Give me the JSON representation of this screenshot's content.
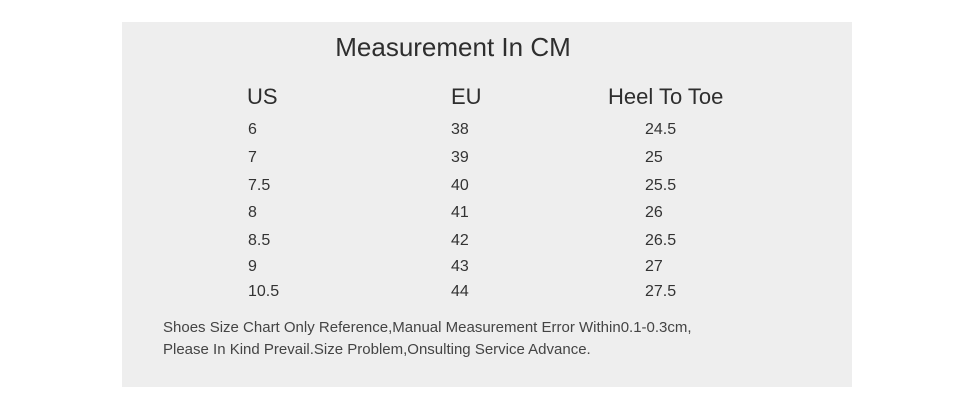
{
  "header": {
    "title": "Measurement In CM"
  },
  "table": {
    "columns": [
      "US",
      "EU",
      "Heel To Toe"
    ],
    "rows": [
      [
        "6",
        "38",
        "24.5"
      ],
      [
        "7",
        "39",
        "25"
      ],
      [
        "7.5",
        "40",
        "25.5"
      ],
      [
        "8",
        "41",
        "26"
      ],
      [
        "8.5",
        "42",
        "26.5"
      ],
      [
        "9",
        "43",
        "27"
      ],
      [
        "10.5",
        "44",
        "27.5"
      ]
    ]
  },
  "notes": [
    "Shoes Size Chart Only Reference,Manual Measurement Error Within0.1-0.3cm,",
    "Please In Kind Prevail.Size Problem,Onsulting Service Advance."
  ]
}
